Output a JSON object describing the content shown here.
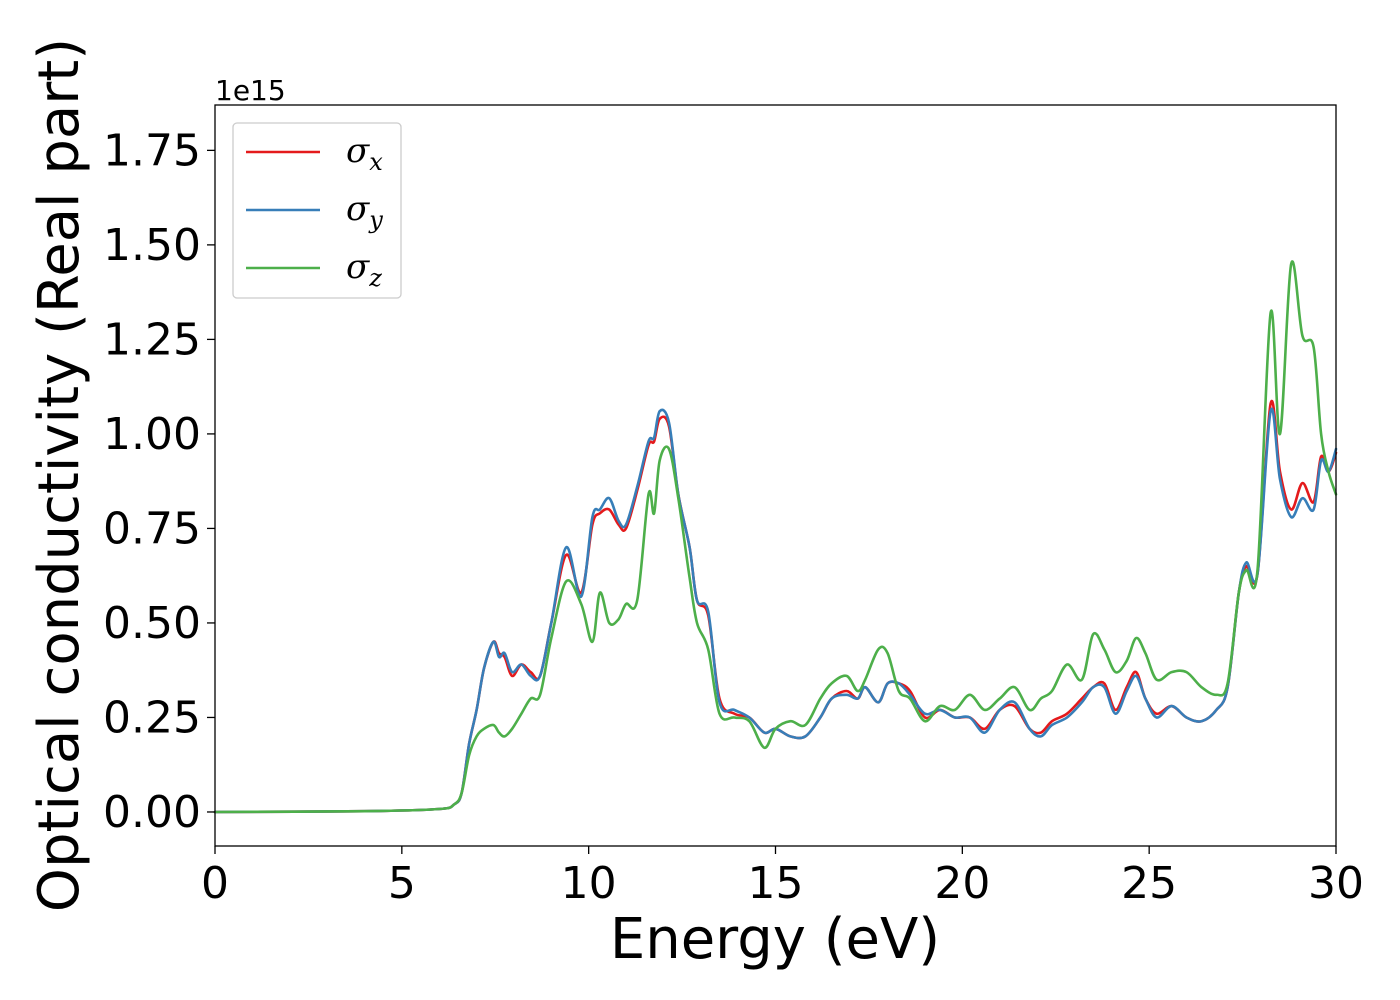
{
  "chart_data": {
    "type": "line",
    "title": "",
    "xlabel": "Energy (eV)",
    "ylabel": "Optical conductivity (Real part)",
    "y_offset_label": "1e15",
    "xlim": [
      0,
      30
    ],
    "ylim": [
      -0.09,
      1.87
    ],
    "x_ticks": [
      0,
      5,
      10,
      15,
      20,
      25,
      30
    ],
    "y_ticks": [
      0.0,
      0.25,
      0.5,
      0.75,
      1.0,
      1.25,
      1.5,
      1.75
    ],
    "x_tick_labels": [
      "0",
      "5",
      "10",
      "15",
      "20",
      "25",
      "30"
    ],
    "y_tick_labels": [
      "0.00",
      "0.25",
      "0.50",
      "0.75",
      "1.00",
      "1.25",
      "1.50",
      "1.75"
    ],
    "grid": false,
    "legend_position": "top-left",
    "series": [
      {
        "name": "σx",
        "symbol": "σ",
        "subscript": "x",
        "color": "#e41a1c",
        "x": [
          0,
          4,
          6,
          6.4,
          6.6,
          6.8,
          7.0,
          7.2,
          7.45,
          7.6,
          7.75,
          7.95,
          8.2,
          8.45,
          8.7,
          9.0,
          9.4,
          9.8,
          10.1,
          10.3,
          10.55,
          10.8,
          11.0,
          11.3,
          11.6,
          11.75,
          11.9,
          12.15,
          12.4,
          12.7,
          12.9,
          13.2,
          13.5,
          13.9,
          14.3,
          14.7,
          15.0,
          15.4,
          15.8,
          16.2,
          16.5,
          16.9,
          17.2,
          17.4,
          17.75,
          18.0,
          18.3,
          18.6,
          19.0,
          19.4,
          19.8,
          20.2,
          20.6,
          21.0,
          21.4,
          21.8,
          22.1,
          22.4,
          22.8,
          23.2,
          23.5,
          23.8,
          24.1,
          24.4,
          24.65,
          24.9,
          25.2,
          25.6,
          26.0,
          26.4,
          26.8,
          27.1,
          27.4,
          27.6,
          27.9,
          28.25,
          28.5,
          28.8,
          29.1,
          29.4,
          29.6,
          29.8,
          30.0
        ],
        "y": [
          0,
          0.002,
          0.008,
          0.02,
          0.05,
          0.18,
          0.27,
          0.38,
          0.45,
          0.42,
          0.41,
          0.36,
          0.39,
          0.37,
          0.36,
          0.5,
          0.68,
          0.58,
          0.76,
          0.79,
          0.8,
          0.76,
          0.75,
          0.85,
          0.97,
          0.98,
          1.04,
          1.02,
          0.84,
          0.7,
          0.56,
          0.52,
          0.3,
          0.26,
          0.25,
          0.21,
          0.22,
          0.2,
          0.2,
          0.25,
          0.3,
          0.32,
          0.3,
          0.33,
          0.29,
          0.34,
          0.34,
          0.32,
          0.25,
          0.27,
          0.25,
          0.25,
          0.22,
          0.27,
          0.28,
          0.22,
          0.21,
          0.24,
          0.26,
          0.3,
          0.33,
          0.34,
          0.27,
          0.33,
          0.37,
          0.3,
          0.26,
          0.28,
          0.25,
          0.24,
          0.27,
          0.33,
          0.58,
          0.65,
          0.63,
          1.08,
          0.9,
          0.8,
          0.87,
          0.82,
          0.94,
          0.9,
          0.95
        ]
      },
      {
        "name": "σy",
        "symbol": "σ",
        "subscript": "y",
        "color": "#377eb8",
        "x": [
          0,
          4,
          6,
          6.4,
          6.6,
          6.8,
          7.0,
          7.2,
          7.45,
          7.6,
          7.75,
          7.95,
          8.2,
          8.45,
          8.7,
          9.0,
          9.4,
          9.8,
          10.1,
          10.3,
          10.55,
          10.8,
          11.0,
          11.3,
          11.6,
          11.75,
          11.9,
          12.15,
          12.4,
          12.7,
          12.9,
          13.2,
          13.5,
          13.9,
          14.3,
          14.7,
          15.0,
          15.4,
          15.8,
          16.2,
          16.5,
          16.9,
          17.2,
          17.4,
          17.75,
          18.0,
          18.3,
          18.6,
          19.0,
          19.4,
          19.8,
          20.2,
          20.6,
          21.0,
          21.4,
          21.8,
          22.1,
          22.4,
          22.8,
          23.2,
          23.5,
          23.8,
          24.1,
          24.4,
          24.65,
          24.9,
          25.2,
          25.6,
          26.0,
          26.4,
          26.8,
          27.1,
          27.4,
          27.6,
          27.9,
          28.25,
          28.5,
          28.8,
          29.1,
          29.4,
          29.6,
          29.8,
          30.0
        ],
        "y": [
          0,
          0.002,
          0.008,
          0.02,
          0.05,
          0.18,
          0.27,
          0.38,
          0.45,
          0.41,
          0.42,
          0.37,
          0.39,
          0.36,
          0.36,
          0.5,
          0.7,
          0.57,
          0.78,
          0.8,
          0.83,
          0.77,
          0.76,
          0.86,
          0.98,
          0.99,
          1.06,
          1.03,
          0.84,
          0.7,
          0.56,
          0.53,
          0.29,
          0.27,
          0.25,
          0.21,
          0.22,
          0.2,
          0.2,
          0.25,
          0.3,
          0.31,
          0.3,
          0.33,
          0.29,
          0.34,
          0.34,
          0.31,
          0.26,
          0.27,
          0.25,
          0.25,
          0.21,
          0.27,
          0.29,
          0.22,
          0.2,
          0.23,
          0.25,
          0.29,
          0.33,
          0.33,
          0.26,
          0.32,
          0.36,
          0.3,
          0.25,
          0.28,
          0.25,
          0.24,
          0.27,
          0.33,
          0.58,
          0.66,
          0.63,
          1.06,
          0.88,
          0.78,
          0.83,
          0.8,
          0.93,
          0.9,
          0.96
        ]
      },
      {
        "name": "σz",
        "symbol": "σ",
        "subscript": "z",
        "color": "#4daf4a",
        "x": [
          0,
          4,
          6,
          6.4,
          6.6,
          6.8,
          7.0,
          7.2,
          7.45,
          7.6,
          7.75,
          7.95,
          8.2,
          8.45,
          8.7,
          9.0,
          9.4,
          9.8,
          10.1,
          10.3,
          10.55,
          10.8,
          11.0,
          11.3,
          11.6,
          11.75,
          11.9,
          12.15,
          12.4,
          12.7,
          12.9,
          13.2,
          13.5,
          13.9,
          14.3,
          14.7,
          15.0,
          15.4,
          15.8,
          16.2,
          16.5,
          16.9,
          17.2,
          17.4,
          17.75,
          18.0,
          18.3,
          18.6,
          19.0,
          19.4,
          19.8,
          20.2,
          20.6,
          21.0,
          21.4,
          21.8,
          22.1,
          22.4,
          22.8,
          23.2,
          23.5,
          23.8,
          24.1,
          24.4,
          24.65,
          24.9,
          25.2,
          25.6,
          26.0,
          26.4,
          26.8,
          27.1,
          27.4,
          27.6,
          27.9,
          28.25,
          28.5,
          28.8,
          29.1,
          29.4,
          29.6,
          29.8,
          30.0
        ],
        "y": [
          0,
          0.002,
          0.008,
          0.02,
          0.05,
          0.15,
          0.2,
          0.22,
          0.23,
          0.21,
          0.2,
          0.22,
          0.26,
          0.3,
          0.31,
          0.46,
          0.61,
          0.55,
          0.45,
          0.58,
          0.5,
          0.51,
          0.55,
          0.56,
          0.84,
          0.79,
          0.93,
          0.96,
          0.83,
          0.62,
          0.5,
          0.43,
          0.26,
          0.25,
          0.24,
          0.17,
          0.22,
          0.24,
          0.23,
          0.3,
          0.34,
          0.36,
          0.32,
          0.35,
          0.43,
          0.42,
          0.32,
          0.3,
          0.24,
          0.28,
          0.27,
          0.31,
          0.27,
          0.3,
          0.33,
          0.27,
          0.3,
          0.32,
          0.39,
          0.35,
          0.47,
          0.43,
          0.37,
          0.4,
          0.46,
          0.42,
          0.35,
          0.37,
          0.37,
          0.33,
          0.31,
          0.34,
          0.58,
          0.64,
          0.64,
          1.32,
          1.0,
          1.45,
          1.26,
          1.23,
          1.0,
          0.9,
          0.84
        ]
      }
    ]
  }
}
